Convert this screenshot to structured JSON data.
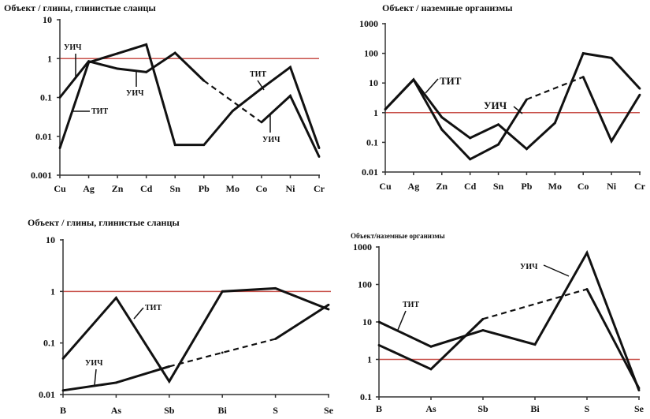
{
  "chart_data": [
    {
      "type": "line",
      "title": "Объект / глины, глинистые сланцы",
      "yscale": "log",
      "ylim": [
        0.001,
        10
      ],
      "yticks": [
        "10",
        "1",
        "0.1",
        "0.01",
        "0.001"
      ],
      "ytick_values": [
        10,
        1,
        0.1,
        0.01,
        0.001
      ],
      "categories": [
        "Cu",
        "Ag",
        "Zn",
        "Cd",
        "Sn",
        "Pb",
        "Mo",
        "Co",
        "Ni",
        "Cr"
      ],
      "reference_line": {
        "value": 1,
        "color": "#c8504a"
      },
      "series": [
        {
          "name": "УИЧ",
          "values": [
            0.1,
            0.85,
            0.55,
            0.45,
            1.4,
            0.27,
            null,
            0.023,
            0.11,
            0.003
          ],
          "dashed_segments": [
            [
              5,
              7
            ]
          ]
        },
        {
          "name": "ТИТ",
          "values": [
            0.005,
            0.8,
            1.35,
            2.3,
            0.006,
            0.006,
            0.045,
            0.17,
            0.6,
            0.005
          ],
          "dashed_segments": []
        }
      ],
      "annotations": [
        "УИЧ",
        "ТИТ",
        "УИЧ",
        "ТИТ",
        "УИЧ"
      ],
      "grid": false
    },
    {
      "type": "line",
      "title": "Объект / наземные организмы",
      "yscale": "log",
      "ylim": [
        0.01,
        1000
      ],
      "yticks": [
        "1000",
        "100",
        "10",
        "1",
        "0.1",
        "0.01"
      ],
      "ytick_values": [
        1000,
        100,
        10,
        1,
        0.1,
        0.01
      ],
      "categories": [
        "Cu",
        "Ag",
        "Zn",
        "Cd",
        "Sn",
        "Pb",
        "Mo",
        "Co",
        "Ni",
        "Cr"
      ],
      "reference_line": {
        "value": 1,
        "color": "#c8504a"
      },
      "series": [
        {
          "name": "ТИТ",
          "values": [
            1.3,
            13,
            0.7,
            0.14,
            0.4,
            0.06,
            0.45,
            100,
            70,
            6.5
          ],
          "dashed_segments": []
        },
        {
          "name": "УИЧ",
          "values": [
            1.3,
            13,
            0.27,
            0.027,
            0.085,
            2.8,
            null,
            16,
            0.11,
            4
          ],
          "dashed_segments": [
            [
              5,
              7
            ]
          ]
        }
      ],
      "annotations": [
        "ТИТ",
        "УИЧ"
      ],
      "grid": false
    },
    {
      "type": "line",
      "title": "Объект / глины, глинистые сланцы",
      "yscale": "log",
      "ylim": [
        0.01,
        10
      ],
      "yticks": [
        "10",
        "1",
        "0.1",
        "0.01"
      ],
      "ytick_values": [
        10,
        1,
        0.1,
        0.01
      ],
      "categories": [
        "B",
        "As",
        "Sb",
        "Bi",
        "S",
        "Se"
      ],
      "reference_line": {
        "value": 1,
        "color": "#c8504a"
      },
      "series": [
        {
          "name": "ТИТ",
          "values": [
            0.05,
            0.75,
            0.018,
            1.0,
            1.15,
            0.45
          ],
          "dashed_segments": []
        },
        {
          "name": "УИЧ",
          "values": [
            0.012,
            0.017,
            0.035,
            0.065,
            0.12,
            0.55
          ],
          "dashed_segments": [
            [
              2,
              4
            ]
          ]
        }
      ],
      "annotations": [
        "ТИТ",
        "УИЧ"
      ],
      "grid": false
    },
    {
      "type": "line",
      "title": "Объект/наземные организмы",
      "yscale": "log",
      "ylim": [
        0.1,
        1000
      ],
      "yticks": [
        "1000",
        "100",
        "10",
        "1",
        "0.1"
      ],
      "ytick_values": [
        1000,
        100,
        10,
        1,
        0.1
      ],
      "categories": [
        "B",
        "As",
        "Sb",
        "Bi",
        "S",
        "Se"
      ],
      "reference_line": {
        "value": 1,
        "color": "#c8504a"
      },
      "series": [
        {
          "name": "ТИТ",
          "values": [
            10,
            2.2,
            6,
            2.5,
            700,
            0.15
          ],
          "dashed_segments": []
        },
        {
          "name": "УИЧ",
          "values": [
            2.4,
            0.55,
            12,
            null,
            75,
            0.17
          ],
          "dashed_segments": [
            [
              2,
              4
            ]
          ]
        }
      ],
      "annotations": [
        "ТИТ",
        "УИЧ"
      ],
      "grid": false
    }
  ]
}
